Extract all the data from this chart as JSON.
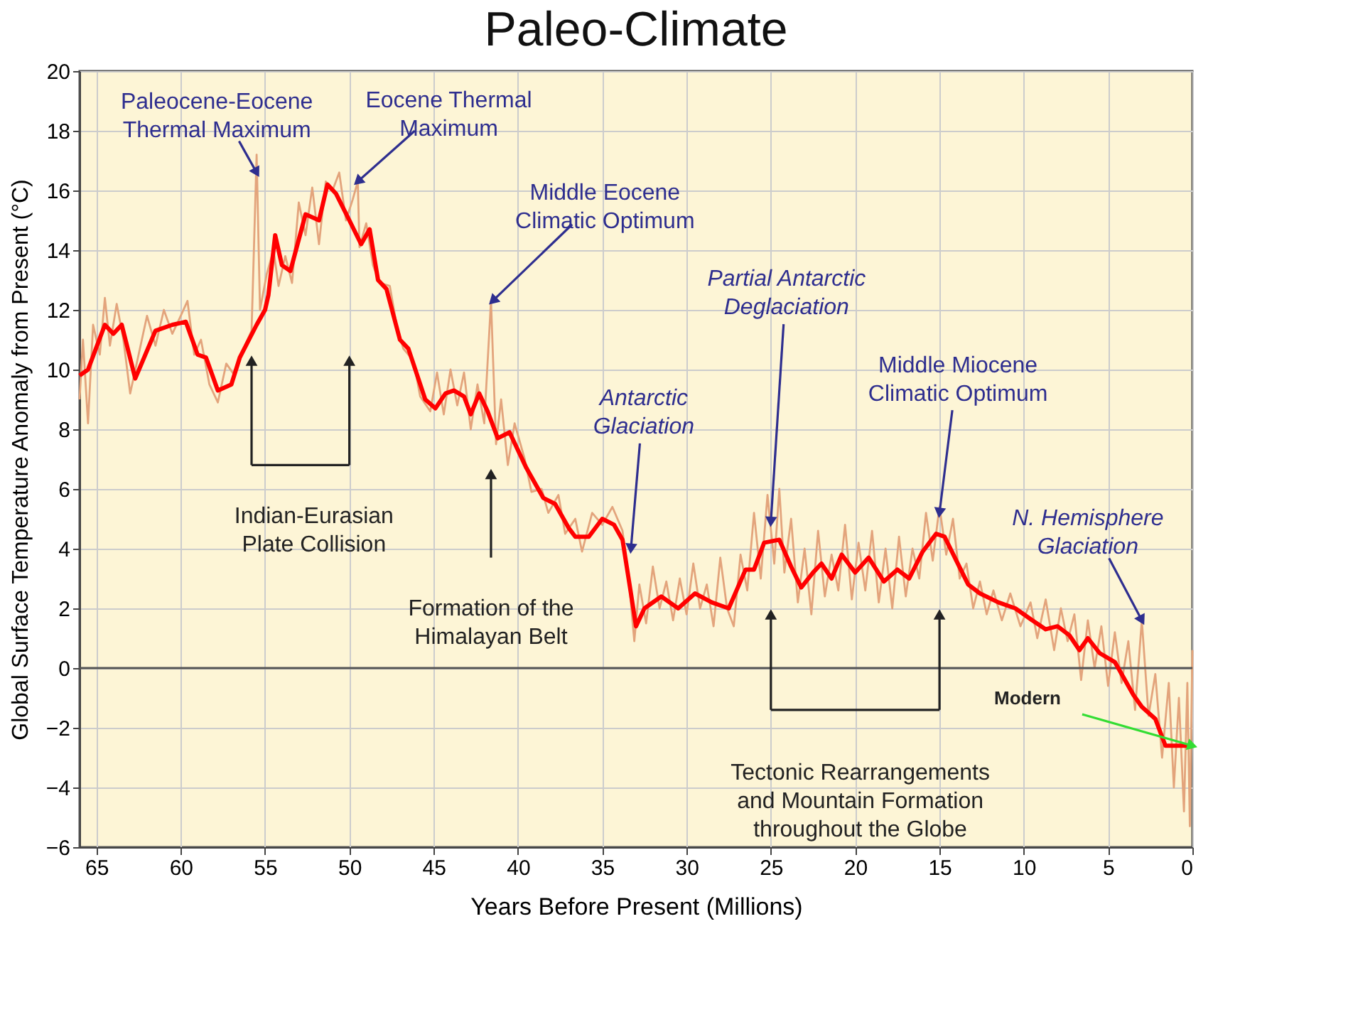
{
  "chart_data": {
    "type": "line",
    "title": "Paleo-Climate",
    "xlabel": "Years Before Present (Millions)",
    "ylabel": "Global Surface Temperature Anomaly from Present (°C)",
    "xlim": [
      66,
      0
    ],
    "xticks": [
      65,
      60,
      55,
      50,
      45,
      40,
      35,
      30,
      25,
      20,
      15,
      10,
      5,
      0
    ],
    "ylim": [
      -6,
      20
    ],
    "yticks": [
      -6,
      -4,
      -2,
      0,
      2,
      4,
      6,
      8,
      10,
      12,
      14,
      16,
      18,
      20
    ],
    "grid": true,
    "line_style": "solid",
    "marker": "none",
    "ref_lines": [
      {
        "axis": "y",
        "value": 0,
        "color": "#555555"
      }
    ],
    "series": [
      {
        "color": "#e3a47c",
        "x": [
          66,
          65.8,
          65.5,
          65.2,
          64.8,
          64.5,
          64.2,
          63.8,
          63.4,
          63,
          62.5,
          62,
          61.5,
          61,
          60.5,
          60,
          59.6,
          59.2,
          58.8,
          58.3,
          57.8,
          57.3,
          56.8,
          56.2,
          55.8,
          55.5,
          55.3,
          54.9,
          54.5,
          54.2,
          53.8,
          53.4,
          53,
          52.6,
          52.2,
          51.8,
          51.4,
          51,
          50.6,
          50.2,
          49.8,
          49.5,
          49.4,
          49,
          48.6,
          48.2,
          47.6,
          47.2,
          46.8,
          46.2,
          45.8,
          45.2,
          44.8,
          44.4,
          44,
          43.6,
          43.2,
          42.8,
          42.4,
          42,
          41.6,
          41.3,
          41,
          40.6,
          40.2,
          39.6,
          39.2,
          38.6,
          38.2,
          37.6,
          37.2,
          36.6,
          36.2,
          35.6,
          35,
          34.4,
          33.8,
          33.4,
          33.1,
          32.8,
          32.4,
          32,
          31.6,
          31.2,
          30.8,
          30.4,
          30,
          29.6,
          29.2,
          28.8,
          28.4,
          28,
          27.6,
          27.2,
          26.8,
          26.4,
          26,
          25.6,
          25.2,
          24.8,
          24.5,
          24.2,
          23.8,
          23.4,
          23,
          22.6,
          22.2,
          21.8,
          21.4,
          21,
          20.6,
          20.2,
          19.8,
          19.4,
          19,
          18.6,
          18.2,
          17.8,
          17.4,
          17,
          16.6,
          16.2,
          15.8,
          15.4,
          15,
          14.6,
          14.2,
          13.8,
          13.4,
          13,
          12.6,
          12.2,
          11.8,
          11.3,
          10.8,
          10.2,
          9.6,
          9.2,
          8.7,
          8.2,
          7.8,
          7.4,
          7,
          6.6,
          6.2,
          5.8,
          5.4,
          5,
          4.6,
          4.2,
          3.8,
          3.4,
          3,
          2.6,
          2.2,
          1.8,
          1.4,
          1.1,
          0.8,
          0.5,
          0.3,
          0.15,
          0
        ],
        "values": [
          9.0,
          11.0,
          8.2,
          11.5,
          10.5,
          12.4,
          10.8,
          12.2,
          11.0,
          9.2,
          10.5,
          11.8,
          10.8,
          12.0,
          11.2,
          11.8,
          12.3,
          10.5,
          11.0,
          9.5,
          8.9,
          10.2,
          9.8,
          10.8,
          11.3,
          17.2,
          12.0,
          13.2,
          14.0,
          12.8,
          13.8,
          12.9,
          15.6,
          14.5,
          16.1,
          14.2,
          16.3,
          16.0,
          16.6,
          15.0,
          15.7,
          16.3,
          14.1,
          14.9,
          13.5,
          12.9,
          12.8,
          11.5,
          10.7,
          10.3,
          9.1,
          8.6,
          9.9,
          8.5,
          10.0,
          8.8,
          9.9,
          8.0,
          9.5,
          8.2,
          12.3,
          7.5,
          9.0,
          6.8,
          8.2,
          7.0,
          5.9,
          6.0,
          5.2,
          5.8,
          4.5,
          5.0,
          3.9,
          5.2,
          4.8,
          5.4,
          4.6,
          2.8,
          0.9,
          2.8,
          1.5,
          3.4,
          2.0,
          2.9,
          1.6,
          3.0,
          1.8,
          3.5,
          2.0,
          2.8,
          1.4,
          3.7,
          2.0,
          1.4,
          3.8,
          2.6,
          5.2,
          3.0,
          5.8,
          3.5,
          6.0,
          3.2,
          5.0,
          2.2,
          4.0,
          1.8,
          4.6,
          2.4,
          3.8,
          2.6,
          4.8,
          2.3,
          4.2,
          2.6,
          4.6,
          2.2,
          4.0,
          2.0,
          4.4,
          2.4,
          4.0,
          3.0,
          5.2,
          3.6,
          5.4,
          3.8,
          5.0,
          3.0,
          3.5,
          2.0,
          2.9,
          1.8,
          2.6,
          1.6,
          2.5,
          1.4,
          2.2,
          1.0,
          2.3,
          0.6,
          2.0,
          0.9,
          1.8,
          -0.4,
          1.6,
          0.0,
          1.4,
          -0.6,
          1.2,
          -0.5,
          0.9,
          -1.4,
          1.6,
          -1.6,
          -0.2,
          -3.0,
          -0.5,
          -4.0,
          -1.0,
          -4.8,
          -0.5,
          -5.3,
          0.6
        ]
      },
      {
        "color": "#ff0000",
        "x": [
          66,
          65.5,
          64.5,
          64,
          63.5,
          62.7,
          61.5,
          60.5,
          59.7,
          59,
          58.5,
          57.8,
          57,
          56.5,
          55.5,
          55,
          54.8,
          54.4,
          54,
          53.5,
          52.6,
          51.8,
          51.3,
          50.8,
          50,
          49.3,
          48.8,
          48.3,
          47.8,
          47,
          46.5,
          45.5,
          44.9,
          44.3,
          43.8,
          43.2,
          42.8,
          42.3,
          41.8,
          41.2,
          40.5,
          39.5,
          38.5,
          37.8,
          37,
          36.6,
          35.8,
          35,
          34.3,
          33.8,
          33.3,
          33,
          32.5,
          31.5,
          30.5,
          29.5,
          28.5,
          27.5,
          26.5,
          26,
          25.4,
          24.5,
          23.8,
          23.2,
          22.5,
          22,
          21.4,
          20.8,
          20,
          19.2,
          18.3,
          17.5,
          16.8,
          16,
          15.2,
          14.7,
          14,
          13.3,
          12.6,
          11.5,
          10.5,
          9.5,
          8.7,
          8,
          7.3,
          6.7,
          6.2,
          5.5,
          4.6,
          3.5,
          3,
          2.2,
          1.6,
          0.5,
          0
        ],
        "values": [
          9.8,
          10.0,
          11.5,
          11.2,
          11.5,
          9.7,
          11.3,
          11.5,
          11.6,
          10.5,
          10.4,
          9.3,
          9.5,
          10.4,
          11.5,
          12.0,
          12.5,
          14.5,
          13.5,
          13.3,
          15.2,
          15.0,
          16.2,
          15.9,
          15.0,
          14.2,
          14.7,
          13.0,
          12.7,
          11.0,
          10.7,
          9.0,
          8.7,
          9.2,
          9.3,
          9.1,
          8.5,
          9.2,
          8.6,
          7.7,
          7.9,
          6.7,
          5.7,
          5.5,
          4.7,
          4.4,
          4.4,
          5.0,
          4.8,
          4.3,
          2.5,
          1.4,
          2.0,
          2.4,
          2.0,
          2.5,
          2.2,
          2.0,
          3.3,
          3.3,
          4.2,
          4.3,
          3.4,
          2.7,
          3.2,
          3.5,
          3.0,
          3.8,
          3.2,
          3.7,
          2.9,
          3.3,
          3.0,
          3.9,
          4.5,
          4.4,
          3.6,
          2.8,
          2.5,
          2.2,
          2.0,
          1.6,
          1.3,
          1.4,
          1.1,
          0.6,
          1.0,
          0.5,
          0.2,
          -0.9,
          -1.3,
          -1.7,
          -2.6,
          -2.6,
          -2.6
        ]
      }
    ],
    "annotations": [
      {
        "text": "Paleocene-Eocene\nThermal Maximum",
        "x": 55.5,
        "y": 16.6
      },
      {
        "text": "Eocene Thermal\nMaximum",
        "x": 49.5,
        "y": 16.3
      },
      {
        "text": "Middle Eocene\nClimatic Optimum",
        "x": 41.5,
        "y": 12.3
      },
      {
        "text": "Antarctic\nGlaciation",
        "x": 33.3,
        "y": 4.0
      },
      {
        "text": "Partial Antarctic\nDeglaciation",
        "x": 25,
        "y": 4.9
      },
      {
        "text": "Middle Miocene\nClimatic Optimum",
        "x": 15,
        "y": 5.2
      },
      {
        "text": "N. Hemisphere\nGlaciation",
        "x": 3.0,
        "y": 1.6
      },
      "Indian-Eurasian\nPlate Collision",
      "Formation of the\nHimalayan Belt",
      "Tectonic Rearrangements\nand Mountain Formation\nthroughout the Globe",
      {
        "text": "Modern",
        "x": 0,
        "y": -2.6
      }
    ]
  }
}
